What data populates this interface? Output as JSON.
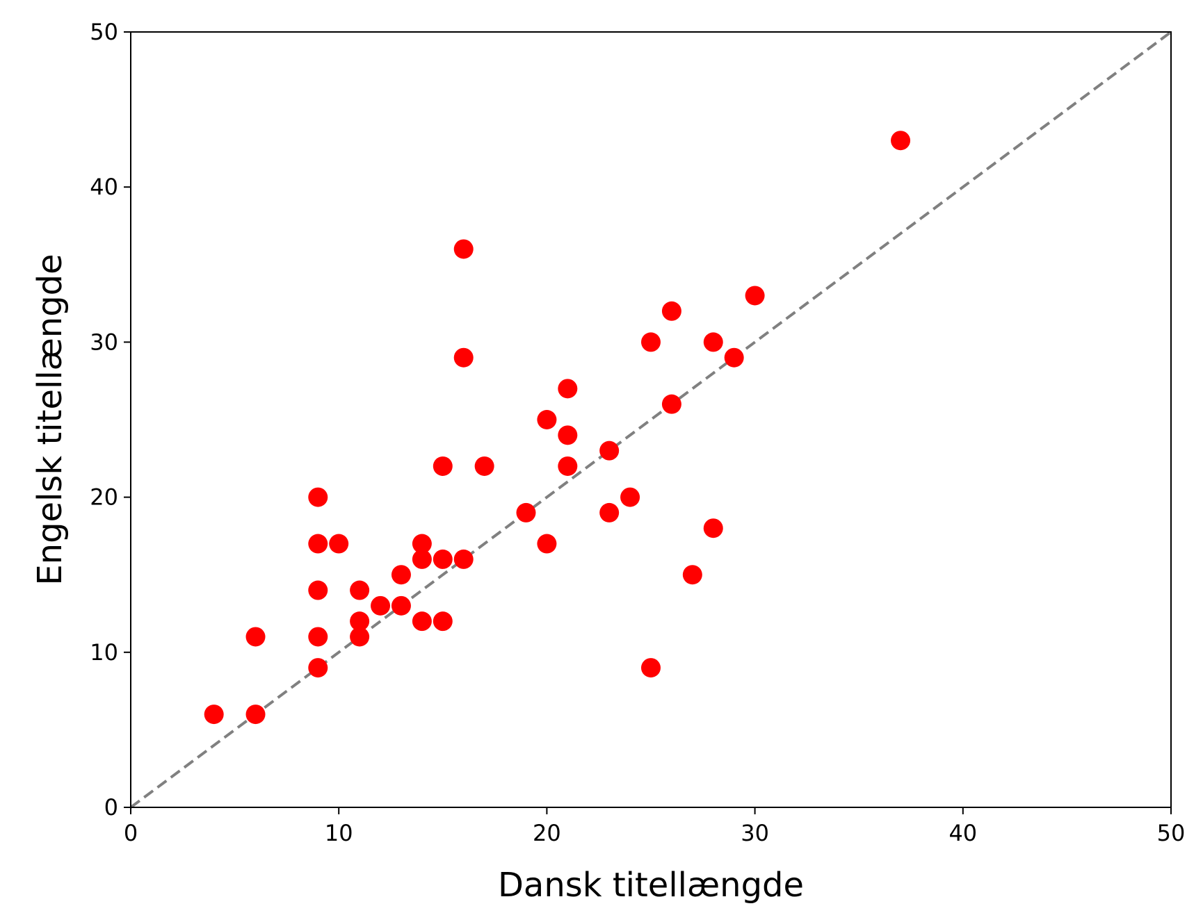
{
  "chart_data": {
    "type": "scatter",
    "title": "",
    "xlabel": "Dansk titellængde",
    "ylabel": "Engelsk titellængde",
    "xlim": [
      0,
      50
    ],
    "ylim": [
      0,
      50
    ],
    "xticks": [
      "0",
      "10",
      "20",
      "30",
      "40",
      "50"
    ],
    "yticks": [
      "0",
      "10",
      "20",
      "30",
      "40",
      "50"
    ],
    "grid": false,
    "point_color": "#ff0000",
    "reference_line": {
      "style": "dashed",
      "color": "#808080",
      "from": [
        0,
        0
      ],
      "to": [
        50,
        50
      ]
    },
    "points": [
      {
        "x": 4,
        "y": 6
      },
      {
        "x": 6,
        "y": 6
      },
      {
        "x": 6,
        "y": 11
      },
      {
        "x": 9,
        "y": 9
      },
      {
        "x": 9,
        "y": 11
      },
      {
        "x": 9,
        "y": 14
      },
      {
        "x": 9,
        "y": 17
      },
      {
        "x": 9,
        "y": 20
      },
      {
        "x": 10,
        "y": 17
      },
      {
        "x": 11,
        "y": 11
      },
      {
        "x": 11,
        "y": 12
      },
      {
        "x": 11,
        "y": 14
      },
      {
        "x": 12,
        "y": 13
      },
      {
        "x": 13,
        "y": 13
      },
      {
        "x": 13,
        "y": 15
      },
      {
        "x": 14,
        "y": 12
      },
      {
        "x": 14,
        "y": 16
      },
      {
        "x": 14,
        "y": 17
      },
      {
        "x": 15,
        "y": 12
      },
      {
        "x": 15,
        "y": 16
      },
      {
        "x": 15,
        "y": 22
      },
      {
        "x": 16,
        "y": 16
      },
      {
        "x": 16,
        "y": 29
      },
      {
        "x": 16,
        "y": 36
      },
      {
        "x": 17,
        "y": 22
      },
      {
        "x": 19,
        "y": 19
      },
      {
        "x": 20,
        "y": 17
      },
      {
        "x": 20,
        "y": 25
      },
      {
        "x": 21,
        "y": 22
      },
      {
        "x": 21,
        "y": 24
      },
      {
        "x": 21,
        "y": 27
      },
      {
        "x": 23,
        "y": 19
      },
      {
        "x": 23,
        "y": 23
      },
      {
        "x": 24,
        "y": 20
      },
      {
        "x": 25,
        "y": 9
      },
      {
        "x": 25,
        "y": 30
      },
      {
        "x": 26,
        "y": 26
      },
      {
        "x": 26,
        "y": 32
      },
      {
        "x": 27,
        "y": 15
      },
      {
        "x": 28,
        "y": 18
      },
      {
        "x": 28,
        "y": 30
      },
      {
        "x": 29,
        "y": 29
      },
      {
        "x": 30,
        "y": 33
      },
      {
        "x": 37,
        "y": 43
      }
    ]
  }
}
